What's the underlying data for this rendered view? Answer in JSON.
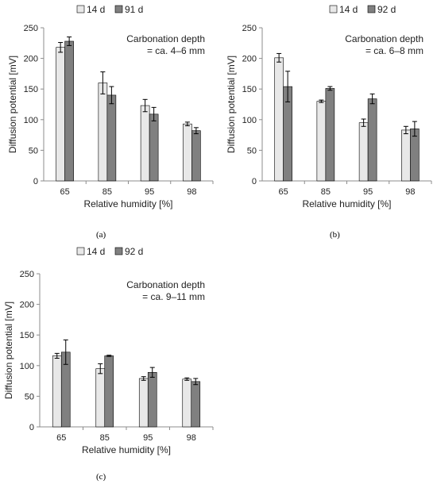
{
  "chart_data": [
    {
      "type": "bar",
      "panel_label": "(a)",
      "categories": [
        "65",
        "85",
        "95",
        "98"
      ],
      "series": [
        {
          "name": "14 d",
          "values": [
            218,
            160,
            123,
            93
          ],
          "errors": [
            8,
            18,
            10,
            3
          ]
        },
        {
          "name": "91 d",
          "values": [
            228,
            140,
            109,
            82
          ],
          "errors": [
            7,
            14,
            11,
            5
          ]
        }
      ],
      "xlabel": "Relative humidity [%]",
      "ylabel": "Diffusion potential [mV]",
      "ylim": [
        0,
        250
      ],
      "yticks": [
        0,
        50,
        100,
        150,
        200,
        250
      ],
      "annotation": [
        "Carbonation depth",
        "= ca. 4–6 mm"
      ],
      "legend": "top"
    },
    {
      "type": "bar",
      "panel_label": "(b)",
      "categories": [
        "65",
        "85",
        "95",
        "98"
      ],
      "series": [
        {
          "name": "14 d",
          "values": [
            201,
            130,
            95,
            83
          ],
          "errors": [
            7,
            2,
            6,
            6
          ]
        },
        {
          "name": "92 d",
          "values": [
            154,
            151,
            134,
            85
          ],
          "errors": [
            25,
            3,
            8,
            12
          ]
        }
      ],
      "xlabel": "Relative humidity [%]",
      "ylabel": "Diffusion potential [mV]",
      "ylim": [
        0,
        250
      ],
      "yticks": [
        0,
        50,
        100,
        150,
        200,
        250
      ],
      "annotation": [
        "Carbonation depth",
        "= ca. 6–8 mm"
      ],
      "legend": "top"
    },
    {
      "type": "bar",
      "panel_label": "(c)",
      "categories": [
        "65",
        "85",
        "95",
        "98"
      ],
      "series": [
        {
          "name": "14 d",
          "values": [
            116,
            95,
            79,
            78
          ],
          "errors": [
            4,
            8,
            3,
            2
          ]
        },
        {
          "name": "92 d",
          "values": [
            122,
            116,
            89,
            74
          ],
          "errors": [
            20,
            1,
            8,
            5
          ]
        }
      ],
      "xlabel": "Relative humidity [%]",
      "ylabel": "Diffusion potential [mV]",
      "ylim": [
        0,
        250
      ],
      "yticks": [
        0,
        50,
        100,
        150,
        200,
        250
      ],
      "annotation": [
        "Carbonation depth",
        "= ca. 9–11 mm"
      ],
      "legend": "top"
    }
  ],
  "colors": {
    "series_1": "#e8e8e8",
    "series_2": "#808080",
    "bar_stroke": "#000000",
    "axis": "#8c8c8c",
    "error_bar": "#000000"
  }
}
